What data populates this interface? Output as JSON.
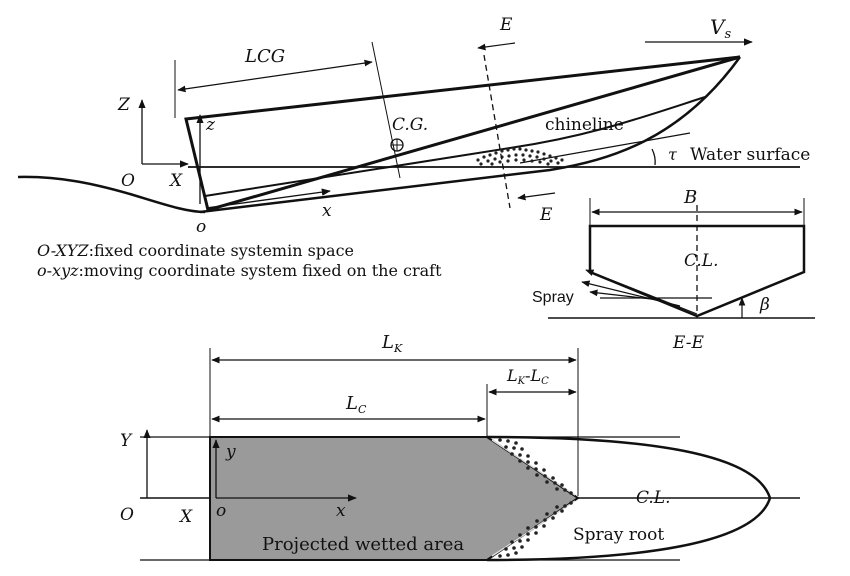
{
  "colors": {
    "ink": "#111111",
    "wetted_fill": "#9a9a9a",
    "background": "#ffffff"
  },
  "side_view": {
    "label_Z": "Z",
    "label_O": "O",
    "label_X": "X",
    "label_z": "z",
    "label_o": "o",
    "label_x": "x",
    "label_LCG": "LCG",
    "label_CG": "C.G.",
    "label_E_top": "E",
    "label_E_bottom": "E",
    "label_Vs": "V",
    "label_Vs_sub": "s",
    "label_chineline": "chineline",
    "label_tau": "τ",
    "label_water_surface": "Water surface"
  },
  "legend": {
    "fixed_symbol": "O-XYZ",
    "fixed_text": ":fixed coordinate systemin space",
    "moving_symbol": "o-xyz",
    "moving_text": ":moving coordinate system fixed on the craft"
  },
  "section_view": {
    "label_B": "B",
    "label_CL": "C.L.",
    "label_spray": "Spray",
    "label_beta": "β",
    "label_section": "E-E"
  },
  "plan_view": {
    "label_LK": "L",
    "label_LK_sub": "K",
    "label_LC": "L",
    "label_LC_sub": "C",
    "label_LKLC_a": "L",
    "label_LKLC_a_sub": "K",
    "label_LKLC_dash": "-L",
    "label_LKLC_b_sub": "C",
    "label_Y": "Y",
    "label_y": "y",
    "label_O": "O",
    "label_X": "X",
    "label_o": "o",
    "label_x": "x",
    "label_CL": "C.L.",
    "label_wetted_area": "Projected wetted area",
    "label_spray_root": "Spray root"
  }
}
